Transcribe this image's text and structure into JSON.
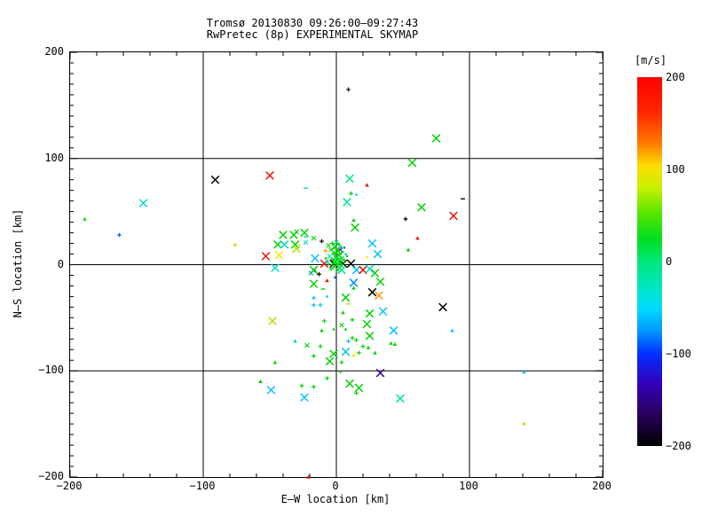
{
  "title": {
    "line1": "Tromsø 20130830 09:26:00–09:27:43",
    "line2": "RwPretec (8p) EXPERIMENTAL SKYMAP"
  },
  "chart_data": {
    "type": "scatter",
    "title": "Tromsø 20130830 09:26:00–09:27:43 RwPretec (8p) EXPERIMENTAL SKYMAP",
    "xlabel": "E–W location [km]",
    "ylabel": "N–S location [km]",
    "xlim": [
      -200,
      200
    ],
    "ylim": [
      -200,
      200
    ],
    "grid": true,
    "grid_lines_at": [
      -100,
      0,
      100
    ],
    "x_major_ticks": [
      -200,
      -100,
      0,
      100,
      200
    ],
    "y_major_ticks": [
      -200,
      -100,
      0,
      100,
      200
    ],
    "x_tick_labels": [
      "−200",
      "−100",
      "0",
      "100",
      "200"
    ],
    "y_tick_labels": [
      "−200",
      "−100",
      "0",
      "100",
      "200"
    ],
    "x_minor_step": 20,
    "y_minor_step": 10,
    "colorbar": {
      "label": "[m/s]",
      "min": -200,
      "max": 200,
      "ticks": [
        200,
        100,
        0,
        -100,
        -200
      ],
      "tick_labels": [
        "200",
        "100",
        "0",
        "−100",
        "−200"
      ],
      "gradient_top_to_bottom": [
        {
          "pos": 0.0,
          "color": "#ff0000"
        },
        {
          "pos": 0.1,
          "color": "#ff2a00"
        },
        {
          "pos": 0.18,
          "color": "#ff7c00"
        },
        {
          "pos": 0.24,
          "color": "#ffdd00"
        },
        {
          "pos": 0.3,
          "color": "#c8f000"
        },
        {
          "pos": 0.37,
          "color": "#55e600"
        },
        {
          "pos": 0.44,
          "color": "#00dd22"
        },
        {
          "pos": 0.5,
          "color": "#00e87c"
        },
        {
          "pos": 0.57,
          "color": "#00e6c3"
        },
        {
          "pos": 0.63,
          "color": "#00d9ff"
        },
        {
          "pos": 0.69,
          "color": "#0095ff"
        },
        {
          "pos": 0.75,
          "color": "#0030ff"
        },
        {
          "pos": 0.83,
          "color": "#3300bb"
        },
        {
          "pos": 0.91,
          "color": "#2a0060"
        },
        {
          "pos": 1.0,
          "color": "#000000"
        }
      ]
    },
    "marker_colors": {
      "g": "#00d400",
      "sg": "#00e88c",
      "tq": "#00dcc8",
      "c": "#00c3ff",
      "b": "#0064ff",
      "bb": "#0090ff",
      "r": "#ee1100",
      "o": "#ff9900",
      "y": "#ffe400",
      "yg": "#b0e600",
      "k": "#000000",
      "p": "#7a00cc",
      "dv": "#3d0099"
    },
    "points_format": [
      "x_km",
      "y_km",
      "color_key",
      "marker(x|p=plus|d=dot|t=triangle|h=dash)",
      "size(l|s)"
    ],
    "points": [
      [
        -189,
        43,
        "g",
        "t",
        "s"
      ],
      [
        -163,
        28,
        "b",
        "p",
        "s"
      ],
      [
        -145,
        58,
        "tq",
        "x",
        "l"
      ],
      [
        -91,
        80,
        "k",
        "x",
        "l"
      ],
      [
        -76,
        19,
        "yg",
        "t",
        "s"
      ],
      [
        -50,
        84,
        "r",
        "x",
        "l"
      ],
      [
        9,
        165,
        "k",
        "p",
        "s"
      ],
      [
        75,
        119,
        "g",
        "x",
        "l"
      ],
      [
        57,
        96,
        "g",
        "x",
        "l"
      ],
      [
        10,
        81,
        "sg",
        "x",
        "l"
      ],
      [
        23,
        75,
        "r",
        "t",
        "s"
      ],
      [
        11,
        67,
        "g",
        "p",
        "s"
      ],
      [
        15,
        66,
        "tq",
        "d",
        "s"
      ],
      [
        -23,
        72,
        "tq",
        "h",
        "s"
      ],
      [
        8,
        59,
        "sg",
        "x",
        "l"
      ],
      [
        13,
        42,
        "g",
        "t",
        "s"
      ],
      [
        14,
        35,
        "g",
        "x",
        "l"
      ],
      [
        64,
        54,
        "g",
        "x",
        "l"
      ],
      [
        52,
        43,
        "k",
        "p",
        "s"
      ],
      [
        88,
        46,
        "r",
        "x",
        "l"
      ],
      [
        61,
        25,
        "r",
        "t",
        "s"
      ],
      [
        54,
        14,
        "g",
        "t",
        "s"
      ],
      [
        95,
        62,
        "k",
        "h",
        "s"
      ],
      [
        27,
        20,
        "c",
        "x",
        "l"
      ],
      [
        31,
        10,
        "c",
        "x",
        "l"
      ],
      [
        23,
        7,
        "y",
        "d",
        "s"
      ],
      [
        -40,
        28,
        "g",
        "x",
        "l"
      ],
      [
        -32,
        28,
        "g",
        "x",
        "l"
      ],
      [
        -24,
        30,
        "g",
        "x",
        "l"
      ],
      [
        -44,
        19,
        "g",
        "x",
        "l"
      ],
      [
        -39,
        19,
        "tq",
        "x",
        "l"
      ],
      [
        -31,
        19,
        "g",
        "x",
        "l"
      ],
      [
        -30,
        15,
        "yg",
        "x",
        "l"
      ],
      [
        -53,
        8,
        "r",
        "x",
        "l"
      ],
      [
        -43,
        9,
        "y",
        "x",
        "l"
      ],
      [
        -23,
        21,
        "tq",
        "x",
        "s"
      ],
      [
        -46,
        -3,
        "tq",
        "x",
        "l"
      ],
      [
        -17,
        25,
        "g",
        "x",
        "s"
      ],
      [
        -30,
        31,
        "g",
        "x",
        "s"
      ],
      [
        -23,
        26,
        "tq",
        "h",
        "s"
      ],
      [
        -11,
        22,
        "k",
        "p",
        "s"
      ],
      [
        -8,
        13,
        "o",
        "p",
        "s"
      ],
      [
        -16,
        6,
        "c",
        "x",
        "l"
      ],
      [
        -9,
        1,
        "r",
        "x",
        "l"
      ],
      [
        -2,
        1,
        "k",
        "x",
        "l"
      ],
      [
        5,
        1,
        "k",
        "x",
        "l"
      ],
      [
        11,
        1,
        "k",
        "x",
        "l"
      ],
      [
        3,
        14,
        "p",
        "x",
        "s"
      ],
      [
        6,
        16,
        "b",
        "d",
        "s"
      ],
      [
        -19,
        -8,
        "bb",
        "x",
        "s"
      ],
      [
        -16,
        -6,
        "p",
        "d",
        "s"
      ],
      [
        -6,
        18,
        "g",
        "x",
        "s"
      ],
      [
        -3,
        20,
        "g",
        "p",
        "s"
      ],
      [
        0,
        21,
        "sg",
        "x",
        "s"
      ],
      [
        2,
        19,
        "g",
        "d",
        "s"
      ],
      [
        -1,
        17,
        "g",
        "x",
        "l"
      ],
      [
        3,
        17,
        "sg",
        "p",
        "s"
      ],
      [
        -4,
        14,
        "g",
        "x",
        "s"
      ],
      [
        1,
        13,
        "g",
        "x",
        "l"
      ],
      [
        5,
        12,
        "sg",
        "d",
        "s"
      ],
      [
        -2,
        11,
        "g",
        "p",
        "s"
      ],
      [
        2,
        9,
        "g",
        "x",
        "l"
      ],
      [
        -5,
        8,
        "sg",
        "x",
        "s"
      ],
      [
        0,
        7,
        "g",
        "x",
        "l"
      ],
      [
        4,
        6,
        "g",
        "x",
        "s"
      ],
      [
        -3,
        5,
        "g",
        "d",
        "s"
      ],
      [
        1,
        4,
        "sg",
        "x",
        "l"
      ],
      [
        6,
        4,
        "g",
        "p",
        "s"
      ],
      [
        -1,
        3,
        "g",
        "x",
        "l"
      ],
      [
        3,
        2,
        "g",
        "x",
        "s"
      ],
      [
        -6,
        1,
        "sg",
        "p",
        "s"
      ],
      [
        0,
        0,
        "g",
        "x",
        "l"
      ],
      [
        4,
        -1,
        "g",
        "x",
        "s"
      ],
      [
        -2,
        -2,
        "g",
        "d",
        "s"
      ],
      [
        2,
        -3,
        "sg",
        "x",
        "s"
      ],
      [
        -4,
        -4,
        "g",
        "p",
        "s"
      ],
      [
        1,
        -5,
        "g",
        "x",
        "s"
      ],
      [
        7,
        10,
        "tq",
        "d",
        "s"
      ],
      [
        -7,
        3,
        "c",
        "d",
        "s"
      ],
      [
        8,
        8,
        "g",
        "d",
        "s"
      ],
      [
        -8,
        6,
        "g",
        "d",
        "s"
      ],
      [
        -17,
        -5,
        "g",
        "x",
        "l"
      ],
      [
        -13,
        -9,
        "k",
        "p",
        "s"
      ],
      [
        -7,
        -15,
        "r",
        "t",
        "s"
      ],
      [
        -1,
        -12,
        "b",
        "d",
        "s"
      ],
      [
        4,
        -5,
        "sg",
        "x",
        "l"
      ],
      [
        15,
        -5,
        "c",
        "x",
        "l"
      ],
      [
        20,
        -5,
        "r",
        "x",
        "l"
      ],
      [
        25,
        -4,
        "tq",
        "x",
        "l"
      ],
      [
        29,
        -8,
        "g",
        "x",
        "l"
      ],
      [
        13,
        -17,
        "bb",
        "x",
        "l"
      ],
      [
        13,
        -22,
        "g",
        "t",
        "s"
      ],
      [
        -17,
        -18,
        "g",
        "x",
        "l"
      ],
      [
        -10,
        -23,
        "g",
        "h",
        "s"
      ],
      [
        33,
        -16,
        "g",
        "x",
        "l"
      ],
      [
        27,
        -26,
        "k",
        "x",
        "l"
      ],
      [
        32,
        -29,
        "o",
        "x",
        "l"
      ],
      [
        7,
        -31,
        "g",
        "x",
        "l"
      ],
      [
        -17,
        -31,
        "c",
        "t",
        "s"
      ],
      [
        -7,
        -30,
        "c",
        "d",
        "s"
      ],
      [
        -17,
        -38,
        "c",
        "p",
        "s"
      ],
      [
        -12,
        -38,
        "c",
        "p",
        "s"
      ],
      [
        9,
        -37,
        "yg",
        "h",
        "s"
      ],
      [
        5,
        -45,
        "g",
        "t",
        "s"
      ],
      [
        25,
        -46,
        "g",
        "x",
        "l"
      ],
      [
        35,
        -44,
        "c",
        "x",
        "l"
      ],
      [
        -48,
        -53,
        "yg",
        "x",
        "l"
      ],
      [
        -9,
        -53,
        "g",
        "p",
        "s"
      ],
      [
        12,
        -52,
        "g",
        "p",
        "s"
      ],
      [
        4,
        -57,
        "g",
        "x",
        "s"
      ],
      [
        7,
        -61,
        "g",
        "d",
        "s"
      ],
      [
        23,
        -56,
        "g",
        "x",
        "l"
      ],
      [
        43,
        -62,
        "c",
        "x",
        "l"
      ],
      [
        87,
        -62,
        "c",
        "t",
        "s"
      ],
      [
        -11,
        -62,
        "g",
        "t",
        "s"
      ],
      [
        -2,
        -61,
        "g",
        "d",
        "s"
      ],
      [
        25,
        -67,
        "g",
        "x",
        "l"
      ],
      [
        12,
        -69,
        "g",
        "p",
        "s"
      ],
      [
        15,
        -71,
        "g",
        "p",
        "s"
      ],
      [
        9,
        -72,
        "c",
        "p",
        "s"
      ],
      [
        -31,
        -72,
        "c",
        "t",
        "s"
      ],
      [
        -22,
        -76,
        "g",
        "x",
        "s"
      ],
      [
        -12,
        -77,
        "g",
        "p",
        "s"
      ],
      [
        20,
        -77,
        "g",
        "p",
        "s"
      ],
      [
        24,
        -78,
        "g",
        "t",
        "s"
      ],
      [
        41,
        -74,
        "g",
        "t",
        "s"
      ],
      [
        44,
        -75,
        "g",
        "t",
        "s"
      ],
      [
        7,
        -82,
        "c",
        "x",
        "l"
      ],
      [
        -2,
        -84,
        "g",
        "x",
        "l"
      ],
      [
        13,
        -85,
        "y",
        "t",
        "s"
      ],
      [
        17,
        -83,
        "g",
        "p",
        "s"
      ],
      [
        -17,
        -86,
        "g",
        "p",
        "s"
      ],
      [
        -46,
        -92,
        "g",
        "t",
        "s"
      ],
      [
        -5,
        -91,
        "g",
        "x",
        "l"
      ],
      [
        4,
        -92,
        "g",
        "p",
        "s"
      ],
      [
        29,
        -83,
        "g",
        "t",
        "s"
      ],
      [
        80,
        -40,
        "k",
        "x",
        "l"
      ],
      [
        33,
        -102,
        "dv",
        "x",
        "l"
      ],
      [
        3,
        -101,
        "g",
        "d",
        "s"
      ],
      [
        10,
        -112,
        "g",
        "x",
        "l"
      ],
      [
        17,
        -116,
        "g",
        "x",
        "l"
      ],
      [
        15,
        -121,
        "g",
        "p",
        "s"
      ],
      [
        -7,
        -107,
        "g",
        "p",
        "s"
      ],
      [
        -57,
        -110,
        "g",
        "t",
        "s"
      ],
      [
        -49,
        -118,
        "c",
        "x",
        "l"
      ],
      [
        -26,
        -114,
        "g",
        "p",
        "s"
      ],
      [
        -17,
        -115,
        "g",
        "p",
        "s"
      ],
      [
        -24,
        -125,
        "c",
        "x",
        "l"
      ],
      [
        48,
        -126,
        "sg",
        "x",
        "l"
      ],
      [
        141,
        -101,
        "c",
        "t",
        "s"
      ],
      [
        141,
        -150,
        "yg",
        "p",
        "s"
      ],
      [
        -21,
        -200,
        "r",
        "t",
        "s"
      ]
    ]
  }
}
